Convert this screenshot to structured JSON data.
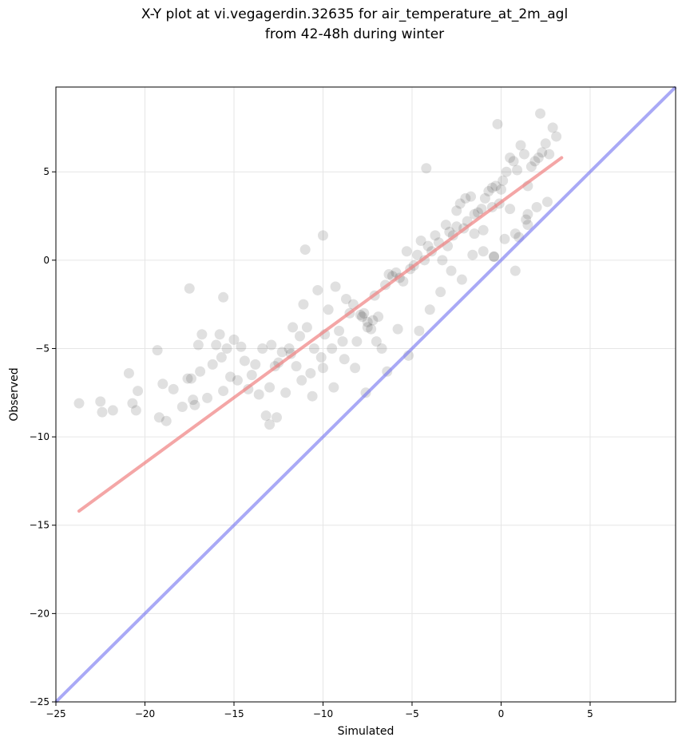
{
  "chart_data": {
    "type": "scatter",
    "title_line1": "X-Y plot at vi.vegagerdin.32635 for air_temperature_at_2m_agl",
    "title_line2": "from 42-48h during winter",
    "xlabel": "Simulated",
    "ylabel": "Observed",
    "xlim": [
      -25,
      9.8
    ],
    "ylim": [
      -25,
      9.8
    ],
    "xticks": [
      -25,
      -20,
      -15,
      -10,
      -5,
      0,
      5
    ],
    "yticks": [
      -25,
      -20,
      -15,
      -10,
      -5,
      0,
      5
    ],
    "xtick_labels": [
      "−25",
      "−20",
      "−15",
      "−10",
      "−5",
      "0",
      "5"
    ],
    "ytick_labels": [
      "−25",
      "−20",
      "−15",
      "−10",
      "−5",
      "0",
      "5"
    ],
    "grid": true,
    "colors": {
      "points": "#000000",
      "fit_line": "#f08080",
      "identity_line": "#7070f0"
    },
    "fit_line": {
      "x": [
        -23.7,
        3.4
      ],
      "y": [
        -14.2,
        5.8
      ]
    },
    "identity_line": {
      "x": [
        -25,
        9.8
      ],
      "y": [
        -25,
        9.8
      ]
    },
    "points": {
      "x": [
        -23.7,
        -22.5,
        -22.4,
        -21.8,
        -20.9,
        -20.7,
        -20.5,
        -20.4,
        -19.3,
        -19.2,
        -19.0,
        -18.8,
        -18.4,
        -17.9,
        -17.6,
        -17.4,
        -17.3,
        -17.2,
        -17.0,
        -16.9,
        -16.8,
        -16.5,
        -16.2,
        -16.0,
        -15.8,
        -15.7,
        -15.6,
        -15.4,
        -15.2,
        -15.0,
        -14.8,
        -14.6,
        -14.4,
        -14.2,
        -14.0,
        -13.8,
        -13.6,
        -13.4,
        -13.2,
        -13.0,
        -12.9,
        -12.7,
        -12.5,
        -12.3,
        -12.1,
        -11.9,
        -11.7,
        -11.5,
        -11.3,
        -11.1,
        -10.9,
        -10.7,
        -10.5,
        -10.3,
        -10.1,
        -9.9,
        -9.7,
        -9.5,
        -9.3,
        -9.1,
        -8.9,
        -8.7,
        -8.5,
        -8.3,
        -8.1,
        -7.9,
        -7.7,
        -7.5,
        -7.3,
        -7.1,
        -6.9,
        -6.7,
        -6.5,
        -6.3,
        -6.1,
        -5.9,
        -5.7,
        -5.5,
        -5.3,
        -5.1,
        -4.9,
        -4.7,
        -4.5,
        -4.3,
        -4.1,
        -3.9,
        -3.7,
        -3.5,
        -3.3,
        -3.1,
        -2.9,
        -2.7,
        -2.5,
        -2.3,
        -2.1,
        -1.9,
        -1.7,
        -1.5,
        -1.3,
        -1.1,
        -0.9,
        -0.7,
        -0.5,
        -0.3,
        -0.1,
        0.1,
        0.3,
        0.5,
        0.7,
        0.9,
        1.1,
        1.3,
        1.5,
        1.7,
        1.9,
        2.1,
        2.3,
        2.5,
        2.7,
        2.9,
        3.1,
        -13.0,
        -12.6,
        -11.8,
        -11.2,
        -10.6,
        -10.0,
        -9.4,
        -8.8,
        -8.2,
        -7.6,
        -7.0,
        -6.4,
        -5.8,
        -5.2,
        -4.6,
        -4.0,
        -3.4,
        -2.8,
        -2.2,
        -1.6,
        -1.0,
        -0.4,
        0.2,
        0.8,
        1.4,
        2.0,
        2.6,
        -7.8,
        -7.5,
        -7.2,
        -2.0,
        -1.5,
        -1.0,
        -0.5,
        0.0,
        0.5,
        1.0,
        1.5,
        -3.0,
        -2.5,
        -17.5,
        -15.6,
        -11.0,
        -10.0,
        -4.2,
        -0.2,
        -0.4,
        0.8,
        1.5,
        2.2
      ],
      "y": [
        -8.1,
        -8.0,
        -8.6,
        -8.5,
        -6.4,
        -8.1,
        -8.5,
        -7.4,
        -5.1,
        -8.9,
        -7.0,
        -9.1,
        -7.3,
        -8.3,
        -6.7,
        -6.7,
        -7.9,
        -8.2,
        -4.8,
        -6.3,
        -4.2,
        -7.8,
        -5.9,
        -4.8,
        -4.2,
        -5.5,
        -7.4,
        -5.0,
        -6.6,
        -4.5,
        -6.8,
        -4.9,
        -5.7,
        -7.3,
        -6.5,
        -5.9,
        -7.6,
        -5.0,
        -8.8,
        -7.2,
        -4.8,
        -6.0,
        -5.8,
        -5.2,
        -7.5,
        -5.0,
        -3.8,
        -6.0,
        -4.3,
        -2.5,
        -3.8,
        -6.4,
        -5.0,
        -1.7,
        -5.5,
        -4.2,
        -2.8,
        -5.0,
        -1.5,
        -4.0,
        -4.6,
        -2.2,
        -3.0,
        -2.5,
        -4.6,
        -3.1,
        -3.0,
        -3.5,
        -3.9,
        -2.0,
        -3.2,
        -5.0,
        -1.4,
        -0.8,
        -0.9,
        -0.7,
        -1.0,
        -1.2,
        0.5,
        -0.5,
        -0.3,
        0.3,
        1.1,
        0.0,
        0.8,
        0.5,
        1.4,
        1.0,
        0.0,
        2.0,
        1.6,
        1.4,
        2.8,
        3.2,
        1.8,
        2.2,
        3.6,
        1.5,
        2.7,
        2.9,
        3.5,
        3.9,
        4.1,
        4.2,
        3.2,
        4.5,
        5.0,
        5.8,
        5.6,
        5.1,
        6.5,
        6.0,
        4.2,
        5.3,
        5.6,
        5.8,
        6.1,
        6.6,
        6.0,
        7.5,
        7.0,
        -9.3,
        -8.9,
        -5.3,
        -6.8,
        -7.7,
        -6.1,
        -7.2,
        -5.6,
        -6.1,
        -7.5,
        -4.6,
        -6.3,
        -3.9,
        -5.4,
        -4.0,
        -2.8,
        -1.8,
        -0.6,
        -1.1,
        0.3,
        0.5,
        0.2,
        1.2,
        1.5,
        2.3,
        3.0,
        3.3,
        -3.2,
        -3.8,
        -3.4,
        3.5,
        2.6,
        1.7,
        3.0,
        4.0,
        2.9,
        1.3,
        2.0,
        0.8,
        1.9,
        -1.6,
        -2.1,
        0.6,
        1.4,
        5.2,
        7.7,
        0.2,
        -0.6,
        2.6,
        8.3
      ]
    }
  }
}
